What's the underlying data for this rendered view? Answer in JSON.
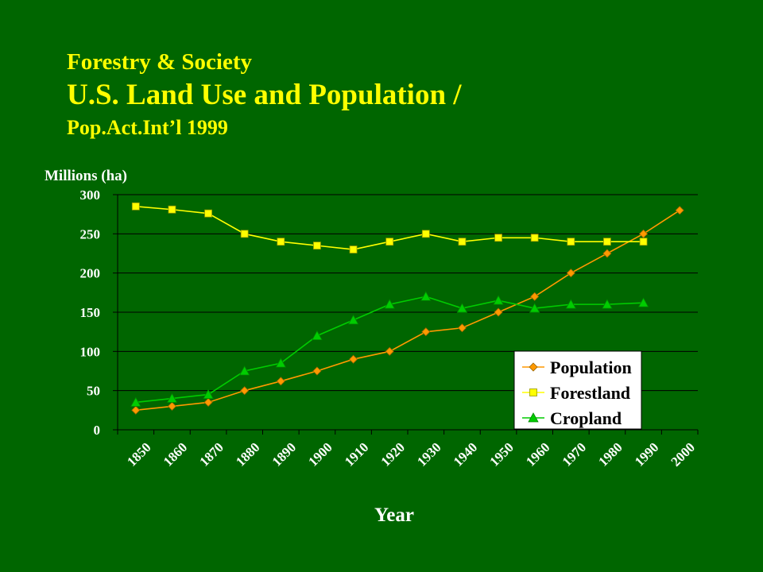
{
  "header": {
    "line1": "Forestry & Society",
    "line2": "U.S. Land Use and Population /",
    "line3": "Pop.Act.Int’l 1999"
  },
  "colors": {
    "background": "#006600",
    "title": "#ffff00",
    "population": "#ff9900",
    "forestland": "#ffff00",
    "cropland": "#00cc00"
  },
  "chart_data": {
    "type": "line",
    "title": "",
    "ylabel": "Millions (ha)",
    "xlabel": "Year",
    "ylim": [
      0,
      300
    ],
    "yticks": [
      "0",
      "50",
      "100",
      "150",
      "200",
      "250",
      "300"
    ],
    "categories": [
      "1850",
      "1860",
      "1870",
      "1880",
      "1890",
      "1900",
      "1910",
      "1920",
      "1930",
      "1940",
      "1950",
      "1960",
      "1970",
      "1980",
      "1990",
      "2000"
    ],
    "grid": true,
    "legend_position": "bottom-right",
    "series": [
      {
        "name": "Population",
        "marker": "diamond",
        "values": [
          25,
          30,
          35,
          50,
          62,
          75,
          90,
          100,
          125,
          130,
          150,
          170,
          200,
          225,
          250,
          280
        ]
      },
      {
        "name": "Forestland",
        "marker": "square",
        "values": [
          285,
          281,
          276,
          250,
          240,
          235,
          230,
          240,
          250,
          240,
          245,
          245,
          240,
          240,
          240,
          null
        ]
      },
      {
        "name": "Cropland",
        "marker": "triangle",
        "values": [
          35,
          40,
          45,
          75,
          85,
          120,
          140,
          160,
          170,
          155,
          165,
          155,
          160,
          160,
          162,
          null
        ]
      }
    ]
  }
}
